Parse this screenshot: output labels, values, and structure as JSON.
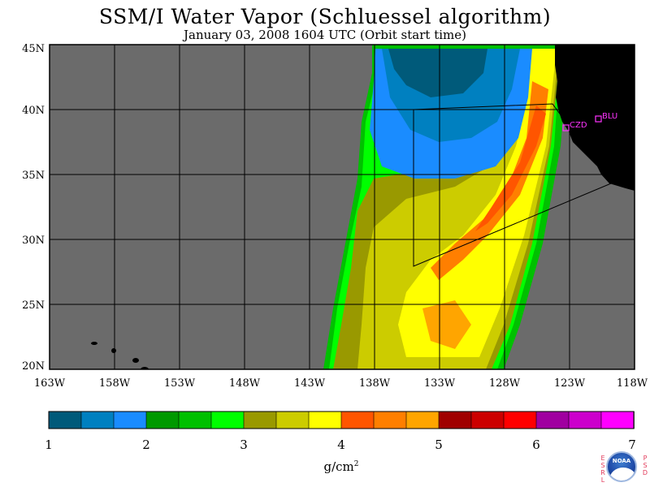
{
  "header": {
    "title": "SSM/I Water Vapor (Schluessel algorithm)",
    "subtitle": "January 03, 2008  1604 UTC  (Orbit start time)"
  },
  "map": {
    "lat_ticks": [
      "45N",
      "40N",
      "35N",
      "30N",
      "25N",
      "20N"
    ],
    "lon_ticks": [
      "163W",
      "158W",
      "153W",
      "148W",
      "143W",
      "138W",
      "133W",
      "128W",
      "123W",
      "118W"
    ],
    "stations": [
      {
        "id": "CZD",
        "label": "CZD"
      },
      {
        "id": "BLU",
        "label": "BLU"
      }
    ],
    "colors": {
      "ocean_nodata": "#6b6b6b",
      "land": "#000000",
      "station": "#ff33ff"
    }
  },
  "colorbar": {
    "tick_labels": [
      "1",
      "2",
      "3",
      "4",
      "5",
      "6",
      "7"
    ],
    "units": "g/cm",
    "units_exp": "2",
    "colors": [
      "#005a7a",
      "#0080c0",
      "#1a8cff",
      "#009900",
      "#00c000",
      "#00ff00",
      "#999900",
      "#cccc00",
      "#ffff00",
      "#ff5500",
      "#ff7f00",
      "#ffa500",
      "#a00000",
      "#cc0000",
      "#ff0000",
      "#a000a0",
      "#cc00cc",
      "#ff00ff"
    ]
  },
  "logo": {
    "left_letters": "ESRL",
    "right_letters": "PSD",
    "circle_text": "NOAA"
  }
}
